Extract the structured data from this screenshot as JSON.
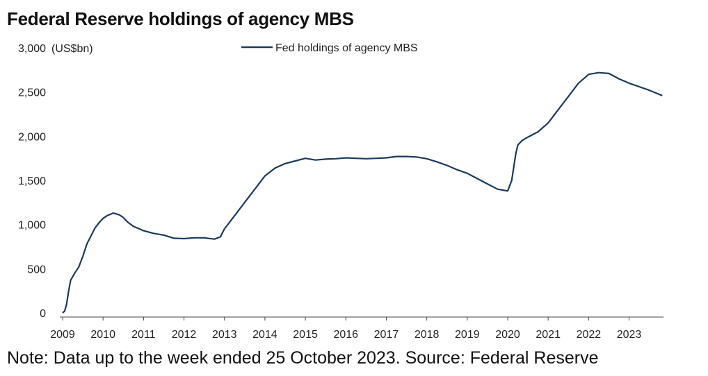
{
  "title": "Federal Reserve holdings of agency MBS",
  "note": "Note: Data up to the week ended 25 October 2023. Source: Federal Reserve",
  "colors": {
    "series": "#1a3a5c",
    "axis": "#444444"
  },
  "chart_data": {
    "type": "line",
    "title": "Federal Reserve holdings of agency MBS",
    "ylabel": "(US$bn)",
    "ylim": [
      0,
      3000
    ],
    "y_ticks": [
      0,
      500,
      1000,
      1500,
      2000,
      2500,
      3000
    ],
    "y_tick_labels": [
      "0",
      "500",
      "1,000",
      "1,500",
      "2,000",
      "2,500",
      "3,000"
    ],
    "xlim": [
      2009.0,
      2023.85
    ],
    "x_ticks": [
      2009,
      2010,
      2011,
      2012,
      2013,
      2014,
      2015,
      2016,
      2017,
      2018,
      2019,
      2020,
      2021,
      2022,
      2023
    ],
    "x_tick_labels": [
      "2009",
      "2010",
      "2011",
      "2012",
      "2013",
      "2014",
      "2015",
      "2016",
      "2017",
      "2018",
      "2019",
      "2020",
      "2021",
      "2022",
      "2023"
    ],
    "grid": false,
    "legend_position": "top-center",
    "series": [
      {
        "name": "Fed holdings of agency MBS",
        "x": [
          2009.0,
          2009.05,
          2009.1,
          2009.15,
          2009.2,
          2009.3,
          2009.4,
          2009.5,
          2009.6,
          2009.7,
          2009.8,
          2009.9,
          2010.0,
          2010.1,
          2010.25,
          2010.4,
          2010.5,
          2010.6,
          2010.75,
          2010.9,
          2011.0,
          2011.25,
          2011.5,
          2011.75,
          2012.0,
          2012.25,
          2012.5,
          2012.75,
          2012.9,
          2013.0,
          2013.25,
          2013.5,
          2013.75,
          2014.0,
          2014.25,
          2014.5,
          2014.75,
          2015.0,
          2015.25,
          2015.5,
          2015.75,
          2016.0,
          2016.25,
          2016.5,
          2016.75,
          2017.0,
          2017.25,
          2017.5,
          2017.75,
          2018.0,
          2018.25,
          2018.5,
          2018.75,
          2019.0,
          2019.25,
          2019.5,
          2019.75,
          2020.0,
          2020.1,
          2020.2,
          2020.25,
          2020.35,
          2020.5,
          2020.75,
          2021.0,
          2021.25,
          2021.5,
          2021.75,
          2022.0,
          2022.25,
          2022.5,
          2022.75,
          2023.0,
          2023.25,
          2023.5,
          2023.82
        ],
        "y": [
          0,
          20,
          100,
          250,
          370,
          450,
          520,
          640,
          780,
          870,
          960,
          1020,
          1070,
          1100,
          1130,
          1110,
          1080,
          1030,
          980,
          950,
          930,
          900,
          880,
          845,
          840,
          850,
          850,
          835,
          860,
          950,
          1100,
          1250,
          1400,
          1550,
          1640,
          1690,
          1720,
          1750,
          1730,
          1740,
          1745,
          1755,
          1750,
          1745,
          1750,
          1755,
          1770,
          1770,
          1765,
          1745,
          1710,
          1670,
          1620,
          1580,
          1520,
          1460,
          1400,
          1380,
          1500,
          1800,
          1900,
          1950,
          1990,
          2050,
          2150,
          2300,
          2450,
          2600,
          2700,
          2720,
          2710,
          2650,
          2600,
          2560,
          2520,
          2460
        ]
      }
    ]
  }
}
